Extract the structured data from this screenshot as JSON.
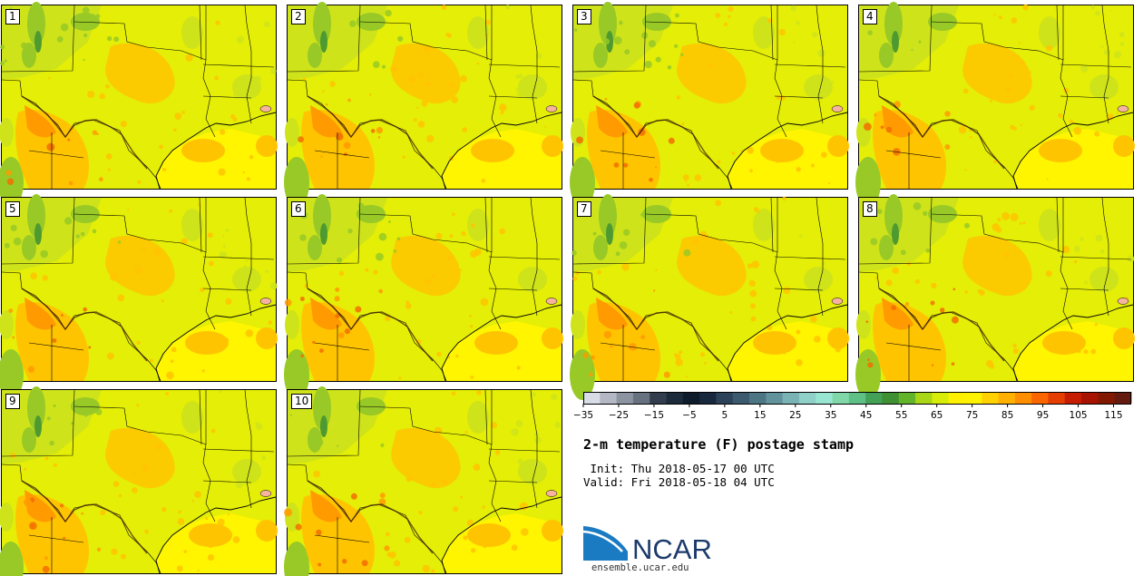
{
  "panels": [
    {
      "label": "1"
    },
    {
      "label": "2"
    },
    {
      "label": "3"
    },
    {
      "label": "4"
    },
    {
      "label": "5"
    },
    {
      "label": "6"
    },
    {
      "label": "7"
    },
    {
      "label": "8"
    },
    {
      "label": "9"
    },
    {
      "label": "10"
    }
  ],
  "colorbar": {
    "colors": [
      "#d8dce6",
      "#b3b8c4",
      "#8c93a1",
      "#68717f",
      "#323d4d",
      "#1c2b3c",
      "#0e1b2b",
      "#18293d",
      "#2c4258",
      "#3b5a6e",
      "#4d7584",
      "#62929c",
      "#79b3b3",
      "#8fd0c8",
      "#98e6d2",
      "#80d8a8",
      "#5fc085",
      "#43a157",
      "#3f8f33",
      "#62b52b",
      "#a9d616",
      "#d8ec0a",
      "#fff000",
      "#fff200",
      "#ffd100",
      "#ffb000",
      "#ff8e00",
      "#fb6500",
      "#e63d00",
      "#c61c00",
      "#a81300",
      "#821800",
      "#651a10"
    ],
    "tick_labels": [
      "-35",
      "-25",
      "-15",
      "-5",
      "5",
      "15",
      "25",
      "35",
      "45",
      "55",
      "65",
      "75",
      "85",
      "95",
      "105",
      "115"
    ],
    "min": -35,
    "max": 120,
    "step": 5
  },
  "title": "2-m temperature (F) postage stamp",
  "init_line": " Init: Thu 2018-05-17 00 UTC",
  "valid_line": "Valid: Fri 2018-05-18 04 UTC",
  "logo_text": "NCAR",
  "website": "ensemble.ucar.edu",
  "map_colors": {
    "ocean": "#fff500",
    "land": "#e4ee06",
    "cool": "#cfe31a",
    "green": "#98c926",
    "dark_green": "#4f9a30",
    "warm": "#ffc400",
    "hot": "#ff9a00",
    "hotter": "#f26e00"
  },
  "logo_colors": {
    "text": "#1b3a6b",
    "swoosh": "#1a7bc2"
  }
}
